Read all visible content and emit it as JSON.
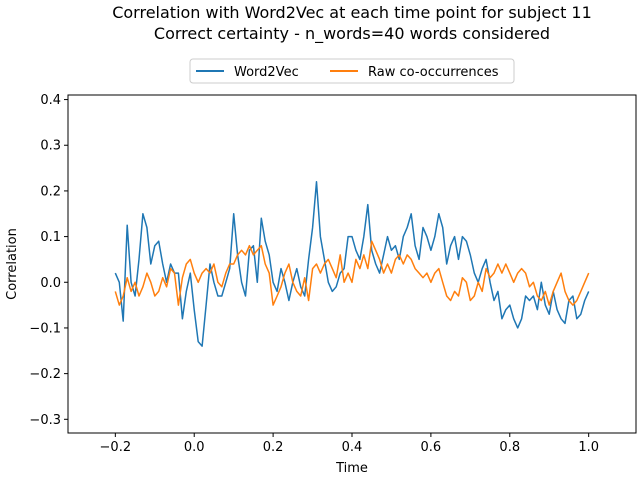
{
  "chart_data": {
    "type": "line",
    "title_line1": "Correlation with Word2Vec at each time point for subject 11",
    "title_line2": "Correct certainty - n_words=40 words considered",
    "xlabel": "Time",
    "ylabel": "Correlation",
    "xlim": [
      -0.32,
      1.12
    ],
    "ylim": [
      -0.33,
      0.41
    ],
    "xticks": [
      -0.2,
      0.0,
      0.2,
      0.4,
      0.6,
      0.8,
      1.0
    ],
    "xtick_labels": [
      "−0.2",
      "0.0",
      "0.2",
      "0.4",
      "0.6",
      "0.8",
      "1.0"
    ],
    "yticks": [
      -0.3,
      -0.2,
      -0.1,
      0.0,
      0.1,
      0.2,
      0.3,
      0.4
    ],
    "ytick_labels": [
      "−0.3",
      "−0.2",
      "−0.1",
      "0.0",
      "0.1",
      "0.2",
      "0.3",
      "0.4"
    ],
    "legend_position": "top-center",
    "series": [
      {
        "name": "Word2Vec",
        "color": "#1f77b4",
        "points": [
          [
            -0.2,
            0.02
          ],
          [
            -0.19,
            0.0
          ],
          [
            -0.18,
            -0.085
          ],
          [
            -0.17,
            0.125
          ],
          [
            -0.16,
            0.0
          ],
          [
            -0.15,
            -0.03
          ],
          [
            -0.14,
            0.05
          ],
          [
            -0.13,
            0.15
          ],
          [
            -0.12,
            0.12
          ],
          [
            -0.11,
            0.04
          ],
          [
            -0.1,
            0.08
          ],
          [
            -0.09,
            0.09
          ],
          [
            -0.08,
            0.04
          ],
          [
            -0.07,
            0.0
          ],
          [
            -0.06,
            0.04
          ],
          [
            -0.05,
            0.02
          ],
          [
            -0.04,
            0.02
          ],
          [
            -0.03,
            -0.08
          ],
          [
            -0.02,
            -0.02
          ],
          [
            -0.01,
            0.02
          ],
          [
            0.0,
            -0.06
          ],
          [
            0.01,
            -0.13
          ],
          [
            0.02,
            -0.14
          ],
          [
            0.03,
            -0.05
          ],
          [
            0.04,
            0.04
          ],
          [
            0.05,
            0.0
          ],
          [
            0.06,
            -0.03
          ],
          [
            0.07,
            -0.03
          ],
          [
            0.08,
            0.0
          ],
          [
            0.09,
            0.03
          ],
          [
            0.1,
            0.15
          ],
          [
            0.11,
            0.06
          ],
          [
            0.12,
            0.0
          ],
          [
            0.13,
            -0.03
          ],
          [
            0.14,
            0.07
          ],
          [
            0.15,
            0.08
          ],
          [
            0.16,
            0.0
          ],
          [
            0.17,
            0.14
          ],
          [
            0.18,
            0.09
          ],
          [
            0.19,
            0.06
          ],
          [
            0.2,
            0.0
          ],
          [
            0.21,
            -0.02
          ],
          [
            0.22,
            0.03
          ],
          [
            0.23,
            0.0
          ],
          [
            0.24,
            -0.04
          ],
          [
            0.25,
            0.0
          ],
          [
            0.26,
            0.03
          ],
          [
            0.27,
            -0.01
          ],
          [
            0.28,
            -0.03
          ],
          [
            0.29,
            0.05
          ],
          [
            0.3,
            0.12
          ],
          [
            0.31,
            0.22
          ],
          [
            0.32,
            0.1
          ],
          [
            0.33,
            0.05
          ],
          [
            0.34,
            0.0
          ],
          [
            0.35,
            -0.02
          ],
          [
            0.36,
            -0.01
          ],
          [
            0.37,
            0.02
          ],
          [
            0.38,
            0.03
          ],
          [
            0.39,
            0.1
          ],
          [
            0.4,
            0.1
          ],
          [
            0.41,
            0.07
          ],
          [
            0.42,
            0.05
          ],
          [
            0.43,
            0.1
          ],
          [
            0.44,
            0.17
          ],
          [
            0.45,
            0.07
          ],
          [
            0.46,
            0.04
          ],
          [
            0.47,
            0.02
          ],
          [
            0.48,
            0.06
          ],
          [
            0.49,
            0.1
          ],
          [
            0.5,
            0.07
          ],
          [
            0.51,
            0.08
          ],
          [
            0.52,
            0.05
          ],
          [
            0.53,
            0.1
          ],
          [
            0.54,
            0.12
          ],
          [
            0.55,
            0.15
          ],
          [
            0.56,
            0.08
          ],
          [
            0.57,
            0.05
          ],
          [
            0.58,
            0.12
          ],
          [
            0.59,
            0.1
          ],
          [
            0.6,
            0.07
          ],
          [
            0.61,
            0.1
          ],
          [
            0.62,
            0.15
          ],
          [
            0.63,
            0.12
          ],
          [
            0.64,
            0.04
          ],
          [
            0.65,
            0.08
          ],
          [
            0.66,
            0.1
          ],
          [
            0.67,
            0.05
          ],
          [
            0.68,
            0.1
          ],
          [
            0.69,
            0.09
          ],
          [
            0.7,
            0.06
          ],
          [
            0.71,
            0.02
          ],
          [
            0.72,
            0.0
          ],
          [
            0.73,
            0.03
          ],
          [
            0.74,
            0.05
          ],
          [
            0.75,
            0.0
          ],
          [
            0.76,
            -0.04
          ],
          [
            0.77,
            -0.02
          ],
          [
            0.78,
            -0.08
          ],
          [
            0.79,
            -0.06
          ],
          [
            0.8,
            -0.05
          ],
          [
            0.81,
            -0.08
          ],
          [
            0.82,
            -0.1
          ],
          [
            0.83,
            -0.08
          ],
          [
            0.84,
            -0.03
          ],
          [
            0.85,
            -0.04
          ],
          [
            0.86,
            -0.03
          ],
          [
            0.87,
            -0.06
          ],
          [
            0.88,
            0.0
          ],
          [
            0.89,
            -0.05
          ],
          [
            0.9,
            -0.07
          ],
          [
            0.91,
            -0.02
          ],
          [
            0.92,
            -0.06
          ],
          [
            0.93,
            -0.08
          ],
          [
            0.94,
            -0.09
          ],
          [
            0.95,
            -0.04
          ],
          [
            0.96,
            -0.03
          ],
          [
            0.97,
            -0.08
          ],
          [
            0.98,
            -0.07
          ],
          [
            0.99,
            -0.04
          ],
          [
            1.0,
            -0.02
          ]
        ]
      },
      {
        "name": "Raw co-occurrences",
        "color": "#ff7f0e",
        "points": [
          [
            -0.2,
            -0.02
          ],
          [
            -0.19,
            -0.05
          ],
          [
            -0.18,
            -0.03
          ],
          [
            -0.17,
            0.01
          ],
          [
            -0.16,
            -0.02
          ],
          [
            -0.15,
            0.0
          ],
          [
            -0.14,
            -0.03
          ],
          [
            -0.13,
            -0.01
          ],
          [
            -0.12,
            0.02
          ],
          [
            -0.11,
            0.0
          ],
          [
            -0.1,
            -0.03
          ],
          [
            -0.09,
            -0.02
          ],
          [
            -0.08,
            0.01
          ],
          [
            -0.07,
            -0.01
          ],
          [
            -0.06,
            0.03
          ],
          [
            -0.05,
            0.02
          ],
          [
            -0.04,
            -0.05
          ],
          [
            -0.03,
            0.01
          ],
          [
            -0.02,
            0.04
          ],
          [
            -0.01,
            0.05
          ],
          [
            0.0,
            0.02
          ],
          [
            0.01,
            0.0
          ],
          [
            0.02,
            0.02
          ],
          [
            0.03,
            0.03
          ],
          [
            0.04,
            0.02
          ],
          [
            0.05,
            0.04
          ],
          [
            0.06,
            0.0
          ],
          [
            0.07,
            -0.01
          ],
          [
            0.08,
            0.02
          ],
          [
            0.09,
            0.04
          ],
          [
            0.1,
            0.04
          ],
          [
            0.11,
            0.06
          ],
          [
            0.12,
            0.07
          ],
          [
            0.13,
            0.06
          ],
          [
            0.14,
            0.08
          ],
          [
            0.15,
            0.06
          ],
          [
            0.16,
            0.07
          ],
          [
            0.17,
            0.08
          ],
          [
            0.18,
            0.04
          ],
          [
            0.19,
            0.02
          ],
          [
            0.2,
            -0.05
          ],
          [
            0.21,
            -0.03
          ],
          [
            0.22,
            -0.01
          ],
          [
            0.23,
            0.02
          ],
          [
            0.24,
            0.04
          ],
          [
            0.25,
            0.0
          ],
          [
            0.26,
            -0.02
          ],
          [
            0.27,
            -0.03
          ],
          [
            0.28,
            0.01
          ],
          [
            0.29,
            -0.04
          ],
          [
            0.3,
            0.03
          ],
          [
            0.31,
            0.04
          ],
          [
            0.32,
            0.02
          ],
          [
            0.33,
            0.04
          ],
          [
            0.34,
            0.05
          ],
          [
            0.35,
            0.03
          ],
          [
            0.36,
            0.01
          ],
          [
            0.37,
            0.06
          ],
          [
            0.38,
            0.0
          ],
          [
            0.39,
            0.02
          ],
          [
            0.4,
            0.0
          ],
          [
            0.41,
            0.05
          ],
          [
            0.42,
            0.03
          ],
          [
            0.43,
            0.06
          ],
          [
            0.44,
            0.03
          ],
          [
            0.45,
            0.09
          ],
          [
            0.46,
            0.07
          ],
          [
            0.47,
            0.05
          ],
          [
            0.48,
            0.02
          ],
          [
            0.49,
            0.04
          ],
          [
            0.5,
            0.02
          ],
          [
            0.51,
            0.05
          ],
          [
            0.52,
            0.06
          ],
          [
            0.53,
            0.04
          ],
          [
            0.54,
            0.06
          ],
          [
            0.55,
            0.05
          ],
          [
            0.56,
            0.03
          ],
          [
            0.57,
            0.02
          ],
          [
            0.58,
            0.01
          ],
          [
            0.59,
            0.02
          ],
          [
            0.6,
            0.0
          ],
          [
            0.61,
            0.02
          ],
          [
            0.62,
            0.03
          ],
          [
            0.63,
            0.0
          ],
          [
            0.64,
            -0.03
          ],
          [
            0.65,
            -0.04
          ],
          [
            0.66,
            -0.02
          ],
          [
            0.67,
            -0.03
          ],
          [
            0.68,
            0.01
          ],
          [
            0.69,
            0.0
          ],
          [
            0.7,
            -0.04
          ],
          [
            0.71,
            -0.03
          ],
          [
            0.72,
            0.0
          ],
          [
            0.73,
            -0.02
          ],
          [
            0.74,
            0.03
          ],
          [
            0.75,
            0.01
          ],
          [
            0.76,
            0.02
          ],
          [
            0.77,
            0.04
          ],
          [
            0.78,
            0.02
          ],
          [
            0.79,
            0.04
          ],
          [
            0.8,
            0.02
          ],
          [
            0.81,
            0.0
          ],
          [
            0.82,
            0.02
          ],
          [
            0.83,
            0.03
          ],
          [
            0.84,
            0.02
          ],
          [
            0.85,
            -0.01
          ],
          [
            0.86,
            0.0
          ],
          [
            0.87,
            -0.03
          ],
          [
            0.88,
            -0.04
          ],
          [
            0.89,
            -0.02
          ],
          [
            0.9,
            -0.05
          ],
          [
            0.91,
            -0.02
          ],
          [
            0.92,
            0.0
          ],
          [
            0.93,
            0.02
          ],
          [
            0.94,
            -0.02
          ],
          [
            0.95,
            -0.04
          ],
          [
            0.96,
            -0.05
          ],
          [
            0.97,
            -0.04
          ],
          [
            0.98,
            -0.02
          ],
          [
            0.99,
            0.0
          ],
          [
            1.0,
            0.02
          ]
        ]
      }
    ]
  }
}
